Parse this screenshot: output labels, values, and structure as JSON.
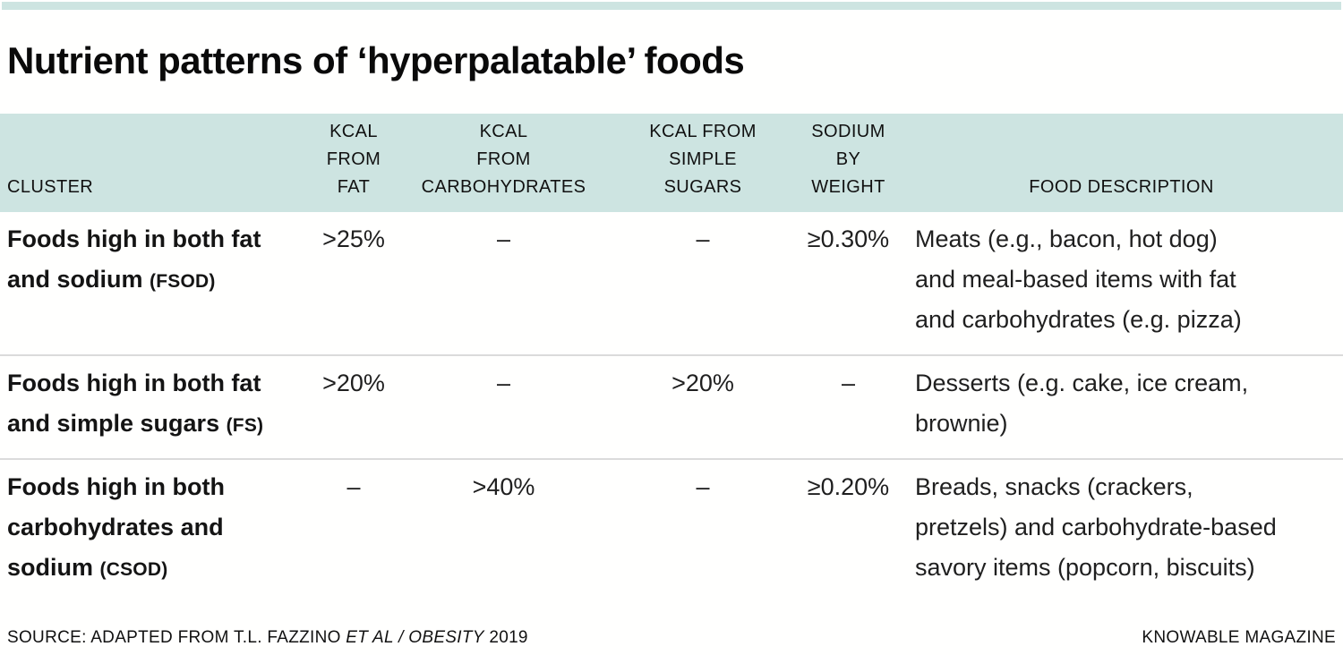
{
  "meta": {
    "accent_color": "#cde4e1",
    "divider_color": "#dbdbdb"
  },
  "title": "Nutrient patterns of ‘hyperpalatable’ foods",
  "header": {
    "cluster": "CLUSTER",
    "kcal_fat": [
      "KCAL",
      "FROM",
      "FAT"
    ],
    "kcal_carbs": [
      "KCAL",
      "FROM",
      "CARBOHYDRATES"
    ],
    "kcal_sugars": [
      "KCAL FROM",
      "SIMPLE",
      "SUGARS"
    ],
    "sodium": [
      "SODIUM",
      "BY",
      "WEIGHT"
    ],
    "description": "FOOD DESCRIPTION"
  },
  "rows": [
    {
      "cluster_lines": [
        "Foods high in both fat",
        "and sodium"
      ],
      "cluster_code": "(FSOD)",
      "kcal_fat": ">25%",
      "kcal_carbs": "–",
      "kcal_sugars": "–",
      "sodium": "≥0.30%",
      "description_lines": [
        "Meats (e.g., bacon, hot dog)",
        "and meal-based items with fat",
        "and carbohydrates (e.g. pizza)"
      ]
    },
    {
      "cluster_lines": [
        "Foods high in both fat",
        "and simple sugars"
      ],
      "cluster_code": "(FS)",
      "kcal_fat": ">20%",
      "kcal_carbs": "–",
      "kcal_sugars": ">20%",
      "sodium": "–",
      "description_lines": [
        "Desserts (e.g. cake, ice cream,",
        "brownie)"
      ]
    },
    {
      "cluster_lines": [
        "Foods high in both",
        "carbohydrates and",
        "sodium"
      ],
      "cluster_code": "(CSOD)",
      "kcal_fat": "–",
      "kcal_carbs": ">40%",
      "kcal_sugars": "–",
      "sodium": "≥0.20%",
      "description_lines": [
        "Breads, snacks (crackers,",
        "pretzels) and carbohydrate-based",
        "savory items (popcorn, biscuits)"
      ]
    }
  ],
  "footer": {
    "source_prefix": "SOURCE: ADAPTED FROM T.L. FAZZINO ",
    "source_italic": "ET AL / OBESITY",
    "source_suffix": " 2019",
    "credit": "KNOWABLE MAGAZINE"
  },
  "chart_data": {
    "type": "table",
    "title": "Nutrient patterns of ‘hyperpalatable’ foods",
    "columns": [
      "CLUSTER",
      "KCAL FROM FAT",
      "KCAL FROM CARBOHYDRATES",
      "KCAL FROM SIMPLE SUGARS",
      "SODIUM BY WEIGHT",
      "FOOD DESCRIPTION"
    ],
    "rows": [
      [
        "Foods high in both fat and sodium (FSOD)",
        ">25%",
        "–",
        "–",
        "≥0.30%",
        "Meats (e.g., bacon, hot dog) and meal-based items with fat and carbohydrates (e.g. pizza)"
      ],
      [
        "Foods high in both fat and simple sugars (FS)",
        ">20%",
        "–",
        ">20%",
        "–",
        "Desserts (e.g. cake, ice cream, brownie)"
      ],
      [
        "Foods high in both carbohydrates and sodium (CSOD)",
        "–",
        ">40%",
        "–",
        "≥0.20%",
        "Breads, snacks (crackers, pretzels) and carbohydrate-based savory items (popcorn, biscuits)"
      ]
    ],
    "source": "SOURCE: ADAPTED FROM T.L. FAZZINO ET AL / OBESITY 2019",
    "credit": "KNOWABLE MAGAZINE",
    "header_background": "#cde4e1",
    "grid": "horizontal dividers between body rows only"
  }
}
